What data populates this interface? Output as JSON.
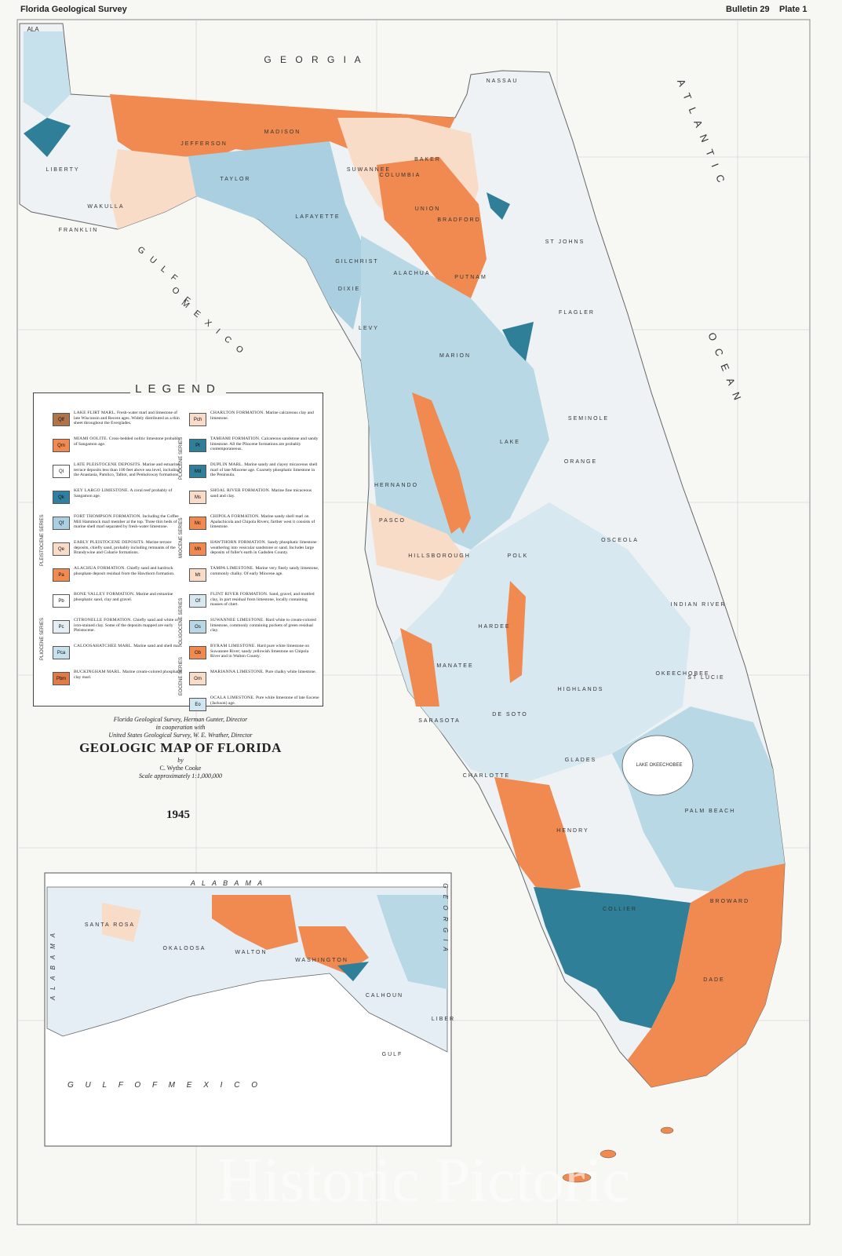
{
  "header": {
    "left": "Florida Geological Survey",
    "bulletin": "Bulletin 29",
    "plate": "Plate 1"
  },
  "map_labels": [
    "ALA",
    "G E O R G I A",
    "A T L A N T I C",
    "O C E A N",
    "G U L F",
    "O F",
    "M E X I C O",
    "LAKE OKEECHOBEE"
  ],
  "counties": [
    "LIBERTY",
    "WAKULLA",
    "FRANKLIN",
    "JEFFERSON",
    "MADISON",
    "TAYLOR",
    "LAFAYETTE",
    "SUWANNEE",
    "COLUMBIA",
    "BAKER",
    "NASSAU",
    "UNION",
    "BRADFORD",
    "ST JOHNS",
    "GILCHRIST",
    "ALACHUA",
    "PUTNAM",
    "FLAGLER",
    "DIXIE",
    "LEVY",
    "MARION",
    "LAKE",
    "SEMINOLE",
    "ORANGE",
    "HERNANDO",
    "PASCO",
    "HILLSBOROUGH",
    "POLK",
    "OSCEOLA",
    "INDIAN RIVER",
    "OKEECHOBEE",
    "ST LUCIE",
    "HARDEE",
    "HIGHLANDS",
    "MANATEE",
    "SARASOTA",
    "DE SOTO",
    "CHARLOTTE",
    "GLADES",
    "HENDRY",
    "PALM BEACH",
    "COLLIER",
    "BROWARD",
    "DADE"
  ],
  "legend": {
    "title": "LEGEND",
    "series": [
      "PLEISTOCENE SERIES",
      "PLIOCENE SERIES",
      "PLIOCENE SERIES",
      "MIOCENE SERIES",
      "OLIGOCENE SERIES",
      "EOCENE SERIES"
    ],
    "left": [
      {
        "symbol": "Qlf",
        "name": "LAKE FLIRT MARL.",
        "desc": "Fresh-water marl and limestone of late Wisconsin and Recent ages. Widely distributed as a thin sheet throughout the Everglades.",
        "color": "#b0744a"
      },
      {
        "symbol": "Qm",
        "name": "MIAMI OOLITE.",
        "desc": "Cross-bedded oolitic limestone probably of Sangamon age.",
        "color": "#f08a50"
      },
      {
        "symbol": "Ql",
        "name": "LATE PLEISTOCENE DEPOSITS.",
        "desc": "Marine and estuarine terrace deposits less than 100 feet above sea level, including the Anastasia, Pamlico, Talbot, and Penholoway formations.",
        "color": "#ffffff"
      },
      {
        "symbol": "Qk",
        "name": "KEY LARGO LIMESTONE.",
        "desc": "A coral reef probably of Sangamon age.",
        "color": "#2f7fa0"
      },
      {
        "symbol": "Qf",
        "name": "FORT THOMPSON FORMATION.",
        "desc": "Including the Coffee Mill Hammock marl member at the top. Three thin beds of marine shell marl separated by fresh-water limestone.",
        "color": "#a9cfe0"
      },
      {
        "symbol": "Qe",
        "name": "EARLY PLEISTOCENE DEPOSITS.",
        "desc": "Marine terrace deposits, chiefly sand, probably including remnants of the Brandywine and Coharie formations.",
        "color": "#f8dcc8"
      },
      {
        "symbol": "Pa",
        "name": "ALACHUA FORMATION.",
        "desc": "Chiefly sand and hardrock phosphate deposit residual from the Hawthorn formation.",
        "color": "#f08a50"
      },
      {
        "symbol": "Pb",
        "name": "BONE VALLEY FORMATION.",
        "desc": "Marine and estuarine phosphatic sand, clay and gravel.",
        "color": "#ffffff"
      },
      {
        "symbol": "Pc",
        "name": "CITRONELLE FORMATION.",
        "desc": "Chiefly sand and white or iron-stained clay. Some of the deposits mapped are early Pleistocene.",
        "color": "#e4eef4"
      },
      {
        "symbol": "Pca",
        "name": "CALOOSAHATCHEE MARL.",
        "desc": "Marine sand and shell marl.",
        "color": "#c6e0ec"
      },
      {
        "symbol": "Pbm",
        "name": "BUCKINGHAM MARL.",
        "desc": "Marine cream-colored phosphatic clay marl.",
        "color": "#e07a48"
      }
    ],
    "right": [
      {
        "symbol": "Pch",
        "name": "CHARLTON FORMATION.",
        "desc": "Marine calcareous clay and limestone.",
        "color": "#f8dcc8"
      },
      {
        "symbol": "Pt",
        "name": "TAMIAMI FORMATION.",
        "desc": "Calcareous sandstone and sandy limestone. All the Pliocene formations are probably contemporaneous.",
        "color": "#2f7f98"
      },
      {
        "symbol": "Md",
        "name": "DUPLIN MARL.",
        "desc": "Marine sandy and clayey micaceous shell marl of late Miocene age. Coarsely phosphatic limestone in the Peninsula.",
        "color": "#2f7f98"
      },
      {
        "symbol": "Ms",
        "name": "SHOAL RIVER FORMATION.",
        "desc": "Marine fine micaceous sand and clay.",
        "color": "#f8dcc8"
      },
      {
        "symbol": "Mc",
        "name": "CHIPOLA FORMATION.",
        "desc": "Marine sandy shell marl on Apalachicola and Chipola Rivers; farther west it consists of limestone.",
        "color": "#f08a50"
      },
      {
        "symbol": "Mh",
        "name": "HAWTHORN FORMATION.",
        "desc": "Sandy phosphatic limestone weathering into vesicular sandstone or sand. Includes large deposits of fuller's earth in Gadsden County.",
        "color": "#f08a50"
      },
      {
        "symbol": "Mt",
        "name": "TAMPA LIMESTONE.",
        "desc": "Marine very finely sandy limestone, commonly chalky. Of early Miocene age.",
        "color": "#f8dcc8"
      },
      {
        "symbol": "Of",
        "name": "FLINT RIVER FORMATION.",
        "desc": "Sand, gravel, and mottled clay, in part residual from limestone, locally containing masses of chert.",
        "color": "#d7e8f0"
      },
      {
        "symbol": "Os",
        "name": "SUWANNEE LIMESTONE.",
        "desc": "Hard white to cream-colored limestone, commonly containing pockets of green residual clay.",
        "color": "#b9d8e6"
      },
      {
        "symbol": "Ob",
        "name": "BYRAM LIMESTONE.",
        "desc": "Hard pure white limestone on Suwannee River; sandy yellowish limestone on Chipola River and in Walton County.",
        "color": "#f08a50"
      },
      {
        "symbol": "Om",
        "name": "MARIANNA LIMESTONE.",
        "desc": "Pure chalky white limestone.",
        "color": "#f8dcc8"
      },
      {
        "symbol": "Eo",
        "name": "OCALA LIMESTONE.",
        "desc": "Pure white limestone of late Eocene (Jackson) age.",
        "color": "#d0e6f0"
      }
    ]
  },
  "title_block": {
    "line1": "Florida Geological Survey, Herman Gunter, Director",
    "line2": "in cooperation with",
    "line3": "United States Geological Survey, W. E. Wrather, Director",
    "title": "GEOLOGIC MAP OF FLORIDA",
    "by": "by",
    "author": "C. Wythe Cooke",
    "scale": "Scale approximately 1:1,000,000",
    "year": "1945"
  },
  "inset": {
    "labels": [
      "A L A B A M A",
      "A L A B A M A",
      "G E O R G I A",
      "G U L F   O F   M E X I C O"
    ],
    "counties": [
      "SANTA ROSA",
      "OKALOOSA",
      "WALTON",
      "WASHINGTON",
      "CALHOUN",
      "GULF",
      "LIBER"
    ]
  },
  "watermark": "Historic Pictoric"
}
